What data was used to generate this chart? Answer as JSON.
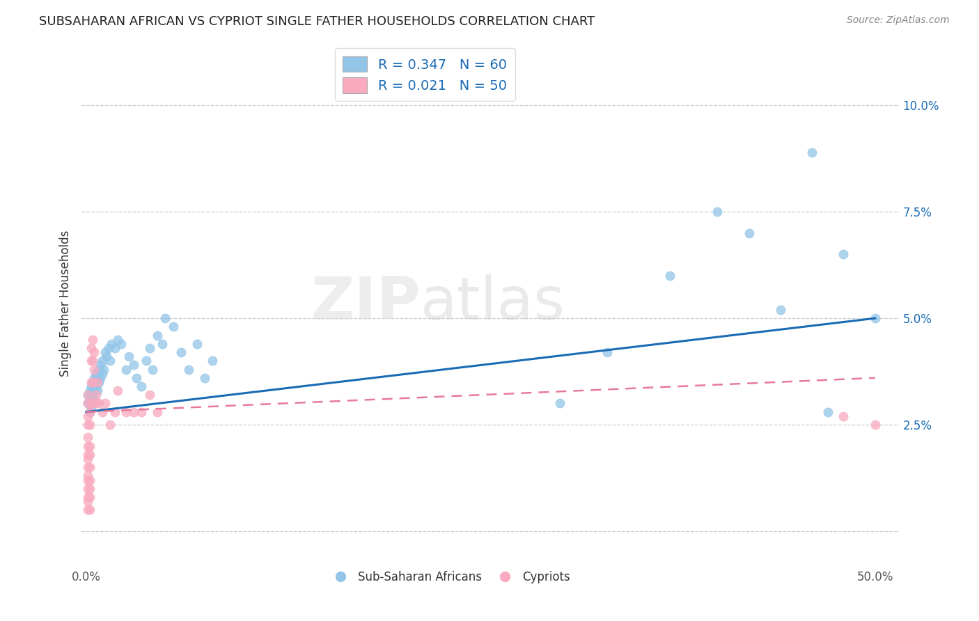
{
  "title": "SUBSAHARAN AFRICAN VS CYPRIOT SINGLE FATHER HOUSEHOLDS CORRELATION CHART",
  "source": "Source: ZipAtlas.com",
  "ylabel": "Single Father Households",
  "legend_blue_label": "R = 0.347   N = 60",
  "legend_pink_label": "R = 0.021   N = 50",
  "blue_color": "#92C5E8",
  "pink_color": "#F9AABF",
  "blue_line_color": "#1A6BB5",
  "pink_line_color": "#E8799A",
  "watermark": "ZIPatlas",
  "blue_scatter_x": [
    0.001,
    0.001,
    0.002,
    0.002,
    0.002,
    0.003,
    0.003,
    0.003,
    0.004,
    0.004,
    0.004,
    0.005,
    0.005,
    0.005,
    0.006,
    0.006,
    0.007,
    0.007,
    0.008,
    0.008,
    0.009,
    0.009,
    0.01,
    0.01,
    0.011,
    0.012,
    0.013,
    0.014,
    0.015,
    0.016,
    0.018,
    0.02,
    0.022,
    0.025,
    0.027,
    0.03,
    0.032,
    0.035,
    0.038,
    0.04,
    0.042,
    0.045,
    0.048,
    0.05,
    0.055,
    0.06,
    0.065,
    0.07,
    0.075,
    0.08,
    0.3,
    0.33,
    0.37,
    0.4,
    0.42,
    0.44,
    0.46,
    0.47,
    0.48,
    0.5
  ],
  "blue_scatter_y": [
    0.03,
    0.032,
    0.028,
    0.03,
    0.033,
    0.031,
    0.034,
    0.029,
    0.032,
    0.035,
    0.03,
    0.033,
    0.036,
    0.031,
    0.034,
    0.037,
    0.033,
    0.036,
    0.035,
    0.038,
    0.036,
    0.039,
    0.037,
    0.04,
    0.038,
    0.042,
    0.041,
    0.043,
    0.04,
    0.044,
    0.043,
    0.045,
    0.044,
    0.038,
    0.041,
    0.039,
    0.036,
    0.034,
    0.04,
    0.043,
    0.038,
    0.046,
    0.044,
    0.05,
    0.048,
    0.042,
    0.038,
    0.044,
    0.036,
    0.04,
    0.03,
    0.042,
    0.06,
    0.075,
    0.07,
    0.052,
    0.089,
    0.028,
    0.065,
    0.05
  ],
  "pink_scatter_x": [
    0.001,
    0.001,
    0.001,
    0.001,
    0.001,
    0.001,
    0.001,
    0.001,
    0.001,
    0.001,
    0.001,
    0.001,
    0.001,
    0.001,
    0.001,
    0.002,
    0.002,
    0.002,
    0.002,
    0.002,
    0.002,
    0.002,
    0.002,
    0.002,
    0.003,
    0.003,
    0.003,
    0.003,
    0.004,
    0.004,
    0.004,
    0.004,
    0.005,
    0.005,
    0.006,
    0.006,
    0.007,
    0.008,
    0.01,
    0.012,
    0.015,
    0.018,
    0.02,
    0.025,
    0.03,
    0.035,
    0.04,
    0.045,
    0.48,
    0.5
  ],
  "pink_scatter_y": [
    0.005,
    0.007,
    0.008,
    0.01,
    0.012,
    0.013,
    0.015,
    0.017,
    0.018,
    0.02,
    0.022,
    0.025,
    0.027,
    0.03,
    0.032,
    0.005,
    0.008,
    0.01,
    0.012,
    0.015,
    0.018,
    0.02,
    0.025,
    0.028,
    0.03,
    0.035,
    0.04,
    0.043,
    0.03,
    0.035,
    0.04,
    0.045,
    0.038,
    0.042,
    0.03,
    0.032,
    0.035,
    0.03,
    0.028,
    0.03,
    0.025,
    0.028,
    0.033,
    0.028,
    0.028,
    0.028,
    0.032,
    0.028,
    0.027,
    0.025
  ],
  "blue_trend_x": [
    0.0,
    0.5
  ],
  "blue_trend_y": [
    0.028,
    0.05
  ],
  "pink_trend_x": [
    0.0,
    0.5
  ],
  "pink_trend_y": [
    0.028,
    0.036
  ],
  "xlim": [
    -0.003,
    0.515
  ],
  "ylim": [
    -0.008,
    0.115
  ],
  "ytick_vals": [
    0.0,
    0.025,
    0.05,
    0.075,
    0.1
  ],
  "ytick_labels": [
    "",
    "2.5%",
    "5.0%",
    "7.5%",
    "10.0%"
  ]
}
